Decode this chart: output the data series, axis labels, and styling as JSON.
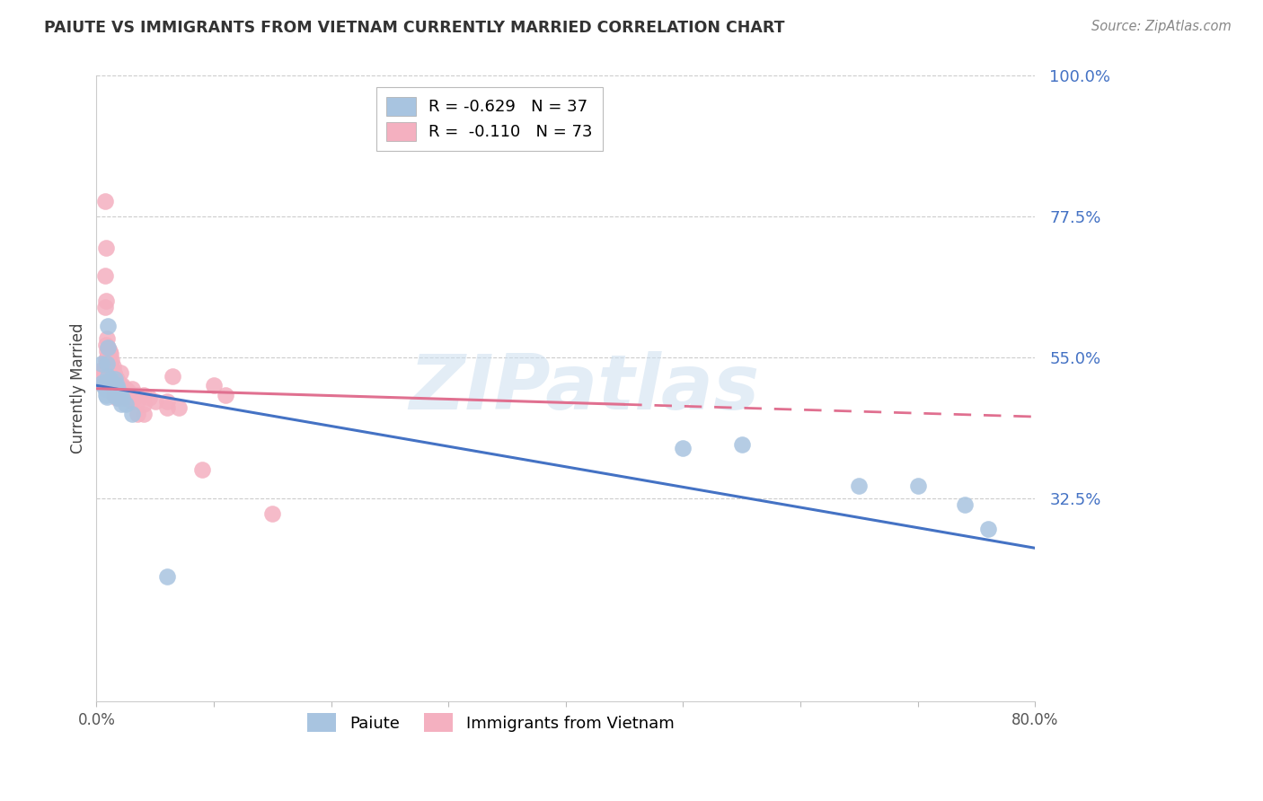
{
  "title": "PAIUTE VS IMMIGRANTS FROM VIETNAM CURRENTLY MARRIED CORRELATION CHART",
  "source": "Source: ZipAtlas.com",
  "ylabel": "Currently Married",
  "x_min": 0.0,
  "x_max": 0.8,
  "y_min": 0.0,
  "y_max": 1.0,
  "x_ticks": [
    0.0,
    0.1,
    0.2,
    0.3,
    0.4,
    0.5,
    0.6,
    0.7,
    0.8
  ],
  "x_tick_labels": [
    "0.0%",
    "",
    "",
    "",
    "",
    "",
    "",
    "",
    "80.0%"
  ],
  "y_ticks": [
    0.325,
    0.55,
    0.775,
    1.0
  ],
  "y_tick_labels": [
    "32.5%",
    "55.0%",
    "77.5%",
    "100.0%"
  ],
  "paiute_color": "#a8c4e0",
  "vietnam_color": "#f4b0c0",
  "paiute_line_color": "#4472c4",
  "vietnam_line_color": "#e07090",
  "watermark": "ZIPatlas",
  "paiute_R": -0.629,
  "paiute_N": 37,
  "vietnam_R": -0.11,
  "vietnam_N": 73,
  "paiute_line_x0": 0.0,
  "paiute_line_y0": 0.505,
  "paiute_line_x1": 0.8,
  "paiute_line_y1": 0.245,
  "vietnam_line_x0": 0.0,
  "vietnam_line_y0": 0.5,
  "vietnam_line_x1": 0.8,
  "vietnam_line_y1": 0.455,
  "paiute_points": [
    [
      0.004,
      0.54
    ],
    [
      0.005,
      0.51
    ],
    [
      0.006,
      0.505
    ],
    [
      0.007,
      0.5
    ],
    [
      0.008,
      0.49
    ],
    [
      0.009,
      0.54
    ],
    [
      0.009,
      0.51
    ],
    [
      0.009,
      0.487
    ],
    [
      0.01,
      0.6
    ],
    [
      0.01,
      0.565
    ],
    [
      0.01,
      0.52
    ],
    [
      0.011,
      0.51
    ],
    [
      0.011,
      0.505
    ],
    [
      0.012,
      0.515
    ],
    [
      0.012,
      0.5
    ],
    [
      0.013,
      0.51
    ],
    [
      0.014,
      0.5
    ],
    [
      0.015,
      0.505
    ],
    [
      0.015,
      0.49
    ],
    [
      0.016,
      0.515
    ],
    [
      0.016,
      0.505
    ],
    [
      0.017,
      0.505
    ],
    [
      0.017,
      0.495
    ],
    [
      0.018,
      0.5
    ],
    [
      0.018,
      0.485
    ],
    [
      0.02,
      0.49
    ],
    [
      0.021,
      0.475
    ],
    [
      0.022,
      0.485
    ],
    [
      0.025,
      0.475
    ],
    [
      0.03,
      0.46
    ],
    [
      0.06,
      0.2
    ],
    [
      0.5,
      0.405
    ],
    [
      0.55,
      0.41
    ],
    [
      0.65,
      0.345
    ],
    [
      0.7,
      0.345
    ],
    [
      0.74,
      0.315
    ],
    [
      0.76,
      0.275
    ]
  ],
  "vietnam_points": [
    [
      0.004,
      0.53
    ],
    [
      0.005,
      0.525
    ],
    [
      0.006,
      0.515
    ],
    [
      0.007,
      0.8
    ],
    [
      0.007,
      0.68
    ],
    [
      0.007,
      0.63
    ],
    [
      0.008,
      0.725
    ],
    [
      0.008,
      0.64
    ],
    [
      0.008,
      0.57
    ],
    [
      0.008,
      0.545
    ],
    [
      0.009,
      0.58
    ],
    [
      0.009,
      0.56
    ],
    [
      0.009,
      0.55
    ],
    [
      0.009,
      0.525
    ],
    [
      0.009,
      0.515
    ],
    [
      0.01,
      0.565
    ],
    [
      0.01,
      0.55
    ],
    [
      0.01,
      0.535
    ],
    [
      0.01,
      0.52
    ],
    [
      0.011,
      0.56
    ],
    [
      0.011,
      0.545
    ],
    [
      0.011,
      0.525
    ],
    [
      0.011,
      0.51
    ],
    [
      0.012,
      0.555
    ],
    [
      0.012,
      0.54
    ],
    [
      0.012,
      0.525
    ],
    [
      0.012,
      0.51
    ],
    [
      0.013,
      0.545
    ],
    [
      0.013,
      0.52
    ],
    [
      0.013,
      0.505
    ],
    [
      0.014,
      0.535
    ],
    [
      0.014,
      0.515
    ],
    [
      0.015,
      0.525
    ],
    [
      0.015,
      0.51
    ],
    [
      0.015,
      0.49
    ],
    [
      0.016,
      0.52
    ],
    [
      0.016,
      0.505
    ],
    [
      0.016,
      0.49
    ],
    [
      0.017,
      0.515
    ],
    [
      0.017,
      0.5
    ],
    [
      0.017,
      0.485
    ],
    [
      0.018,
      0.51
    ],
    [
      0.018,
      0.495
    ],
    [
      0.019,
      0.505
    ],
    [
      0.019,
      0.49
    ],
    [
      0.02,
      0.525
    ],
    [
      0.02,
      0.505
    ],
    [
      0.02,
      0.49
    ],
    [
      0.022,
      0.505
    ],
    [
      0.022,
      0.495
    ],
    [
      0.025,
      0.5
    ],
    [
      0.025,
      0.485
    ],
    [
      0.027,
      0.495
    ],
    [
      0.028,
      0.485
    ],
    [
      0.03,
      0.5
    ],
    [
      0.03,
      0.49
    ],
    [
      0.03,
      0.48
    ],
    [
      0.035,
      0.49
    ],
    [
      0.035,
      0.48
    ],
    [
      0.035,
      0.46
    ],
    [
      0.04,
      0.49
    ],
    [
      0.04,
      0.475
    ],
    [
      0.04,
      0.46
    ],
    [
      0.045,
      0.485
    ],
    [
      0.05,
      0.48
    ],
    [
      0.06,
      0.48
    ],
    [
      0.06,
      0.47
    ],
    [
      0.065,
      0.52
    ],
    [
      0.07,
      0.47
    ],
    [
      0.09,
      0.37
    ],
    [
      0.1,
      0.505
    ],
    [
      0.11,
      0.49
    ],
    [
      0.15,
      0.3
    ]
  ]
}
